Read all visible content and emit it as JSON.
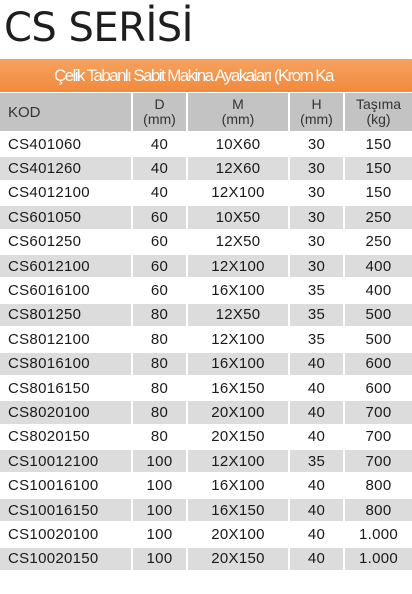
{
  "title": "CS SERİSİ",
  "banner": "Çelik Tabanlı Sabit Makina Ayakaları (Krom Ka",
  "headers": {
    "kod": "KOD",
    "d": "D",
    "d_unit": "(mm)",
    "m": "M",
    "m_unit": "(mm)",
    "h": "H",
    "h_unit": "(mm)",
    "tasima": "Taşıma",
    "tasima_unit": "(kg)"
  },
  "rows": [
    [
      "CS401060",
      "40",
      "10X60",
      "30",
      "150"
    ],
    [
      "CS401260",
      "40",
      "12X60",
      "30",
      "150"
    ],
    [
      "CS4012100",
      "40",
      "12X100",
      "30",
      "150"
    ],
    [
      "CS601050",
      "60",
      "10X50",
      "30",
      "250"
    ],
    [
      "CS601250",
      "60",
      "12X50",
      "30",
      "250"
    ],
    [
      "CS6012100",
      "60",
      "12X100",
      "30",
      "400"
    ],
    [
      "CS6016100",
      "60",
      "16X100",
      "35",
      "400"
    ],
    [
      "CS801250",
      "80",
      "12X50",
      "35",
      "500"
    ],
    [
      "CS8012100",
      "80",
      "12X100",
      "35",
      "500"
    ],
    [
      "CS8016100",
      "80",
      "16X100",
      "40",
      "600"
    ],
    [
      "CS8016150",
      "80",
      "16X150",
      "40",
      "600"
    ],
    [
      "CS8020100",
      "80",
      "20X100",
      "40",
      "700"
    ],
    [
      "CS8020150",
      "80",
      "20X150",
      "40",
      "700"
    ],
    [
      "CS10012100",
      "100",
      "12X100",
      "35",
      "700"
    ],
    [
      "CS10016100",
      "100",
      "16X100",
      "40",
      "800"
    ],
    [
      "CS10016150",
      "100",
      "16X150",
      "40",
      "800"
    ],
    [
      "CS10020100",
      "100",
      "20X100",
      "40",
      "1.000"
    ],
    [
      "CS10020150",
      "100",
      "20X150",
      "40",
      "1.000"
    ]
  ],
  "colors": {
    "accent": "#f08a3c",
    "header_bg": "#c3c3c3",
    "stripe": "#dcdcdc"
  }
}
